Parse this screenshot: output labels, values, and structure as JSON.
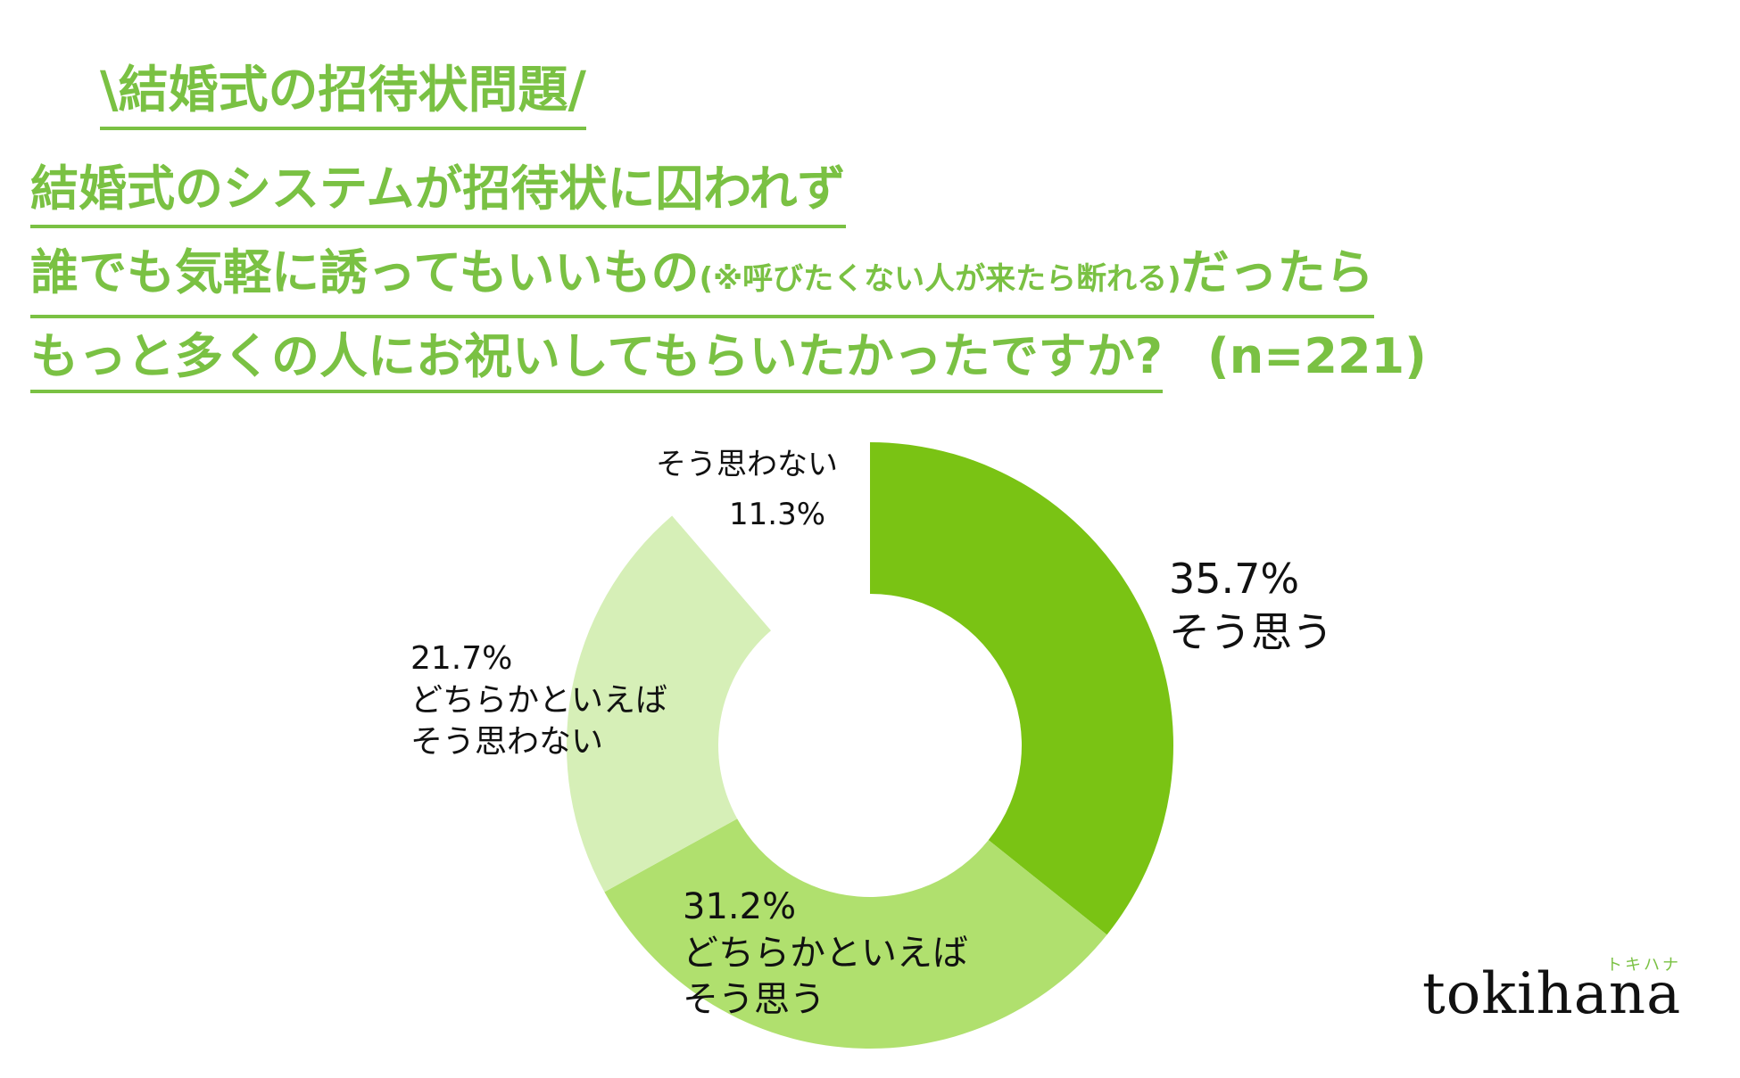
{
  "header": {
    "eyebrow": "\\結婚式の招待状問題/",
    "question_line1": "結婚式のシステムが招待状に囚われず",
    "question_line2": "誰でも気軽に誘ってもいいもの",
    "question_line2_note": "(※呼びたくない人が来たら断れる)",
    "question_line2_end": "だったら",
    "question_line3": "もっと多くの人にお祝いしてもらいたかったですか?",
    "sample_size": "(n=221)"
  },
  "chart_data": {
    "type": "pie",
    "style": "donut",
    "start_angle_deg": 0,
    "direction": "clockwise",
    "slices": [
      {
        "label_lines": [
          "そう思う"
        ],
        "value": 35.7,
        "value_label": "35.7%",
        "color": "#7ac314"
      },
      {
        "label_lines": [
          "どちらかといえば",
          "そう思う"
        ],
        "value": 31.2,
        "value_label": "31.2%",
        "color": "#b0e06e"
      },
      {
        "label_lines": [
          "どちらかといえば",
          "そう思わない"
        ],
        "value": 21.7,
        "value_label": "21.7%",
        "color": "#d6efb7"
      },
      {
        "label_lines": [
          "そう思わない"
        ],
        "value": 11.3,
        "value_label": "11.3%",
        "color": "#ffffff"
      }
    ]
  },
  "logo": {
    "text": "tokihana",
    "kana": "トキハナ"
  }
}
